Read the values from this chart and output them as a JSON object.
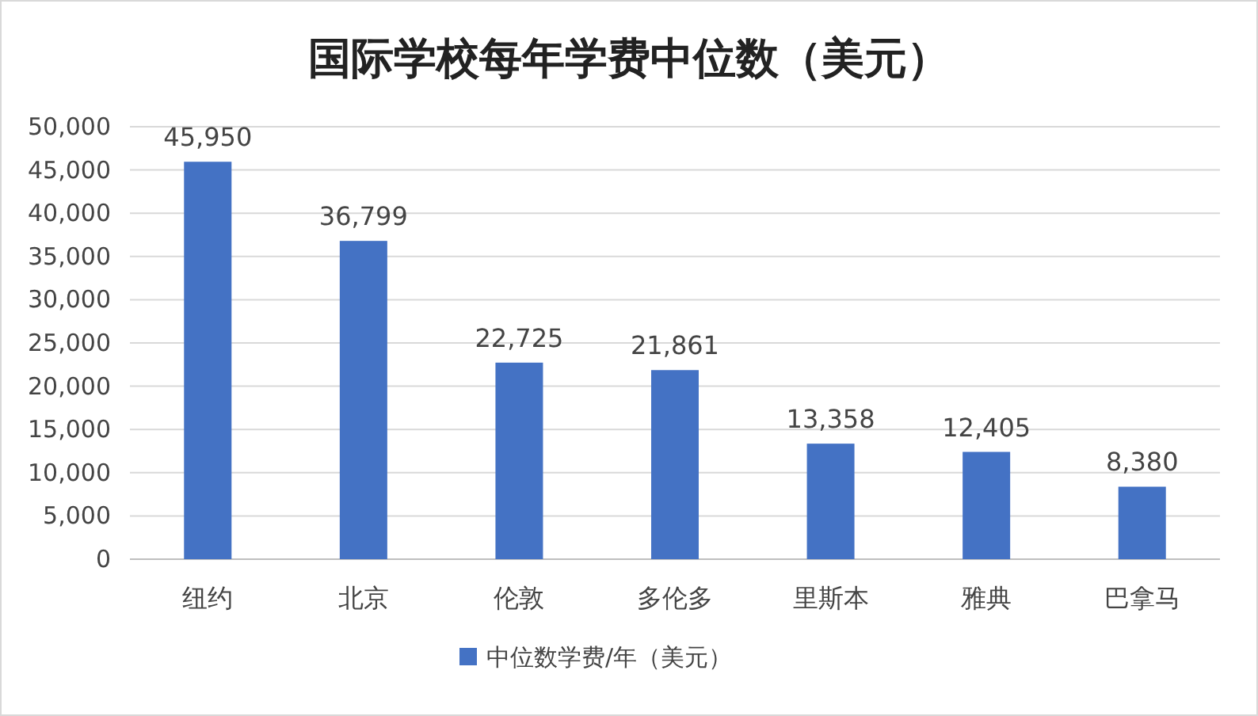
{
  "chart_data": {
    "type": "bar",
    "title": "国际学校每年学费中位数（美元）",
    "categories": [
      "纽约",
      "北京",
      "伦敦",
      "多伦多",
      "里斯本",
      "雅典",
      "巴拿马"
    ],
    "series": [
      {
        "name": "中位数学费/年（美元）",
        "color": "#4472c4",
        "values": [
          45950,
          36799,
          22725,
          21861,
          13358,
          12405,
          8380
        ],
        "value_labels": [
          "45,950",
          "36,799",
          "22,725",
          "21,861",
          "13,358",
          "12,405",
          "8,380"
        ]
      }
    ],
    "ylim": [
      0,
      50000
    ],
    "yticks": [
      {
        "value": 0,
        "label": "0"
      },
      {
        "value": 5000,
        "label": "5,000"
      },
      {
        "value": 10000,
        "label": "10,000"
      },
      {
        "value": 15000,
        "label": "15,000"
      },
      {
        "value": 20000,
        "label": "20,000"
      },
      {
        "value": 25000,
        "label": "25,000"
      },
      {
        "value": 30000,
        "label": "30,000"
      },
      {
        "value": 35000,
        "label": "35,000"
      },
      {
        "value": 40000,
        "label": "40,000"
      },
      {
        "value": 45000,
        "label": "45,000"
      },
      {
        "value": 50000,
        "label": "50,000"
      }
    ],
    "grid": "y",
    "legend": "bottom"
  }
}
